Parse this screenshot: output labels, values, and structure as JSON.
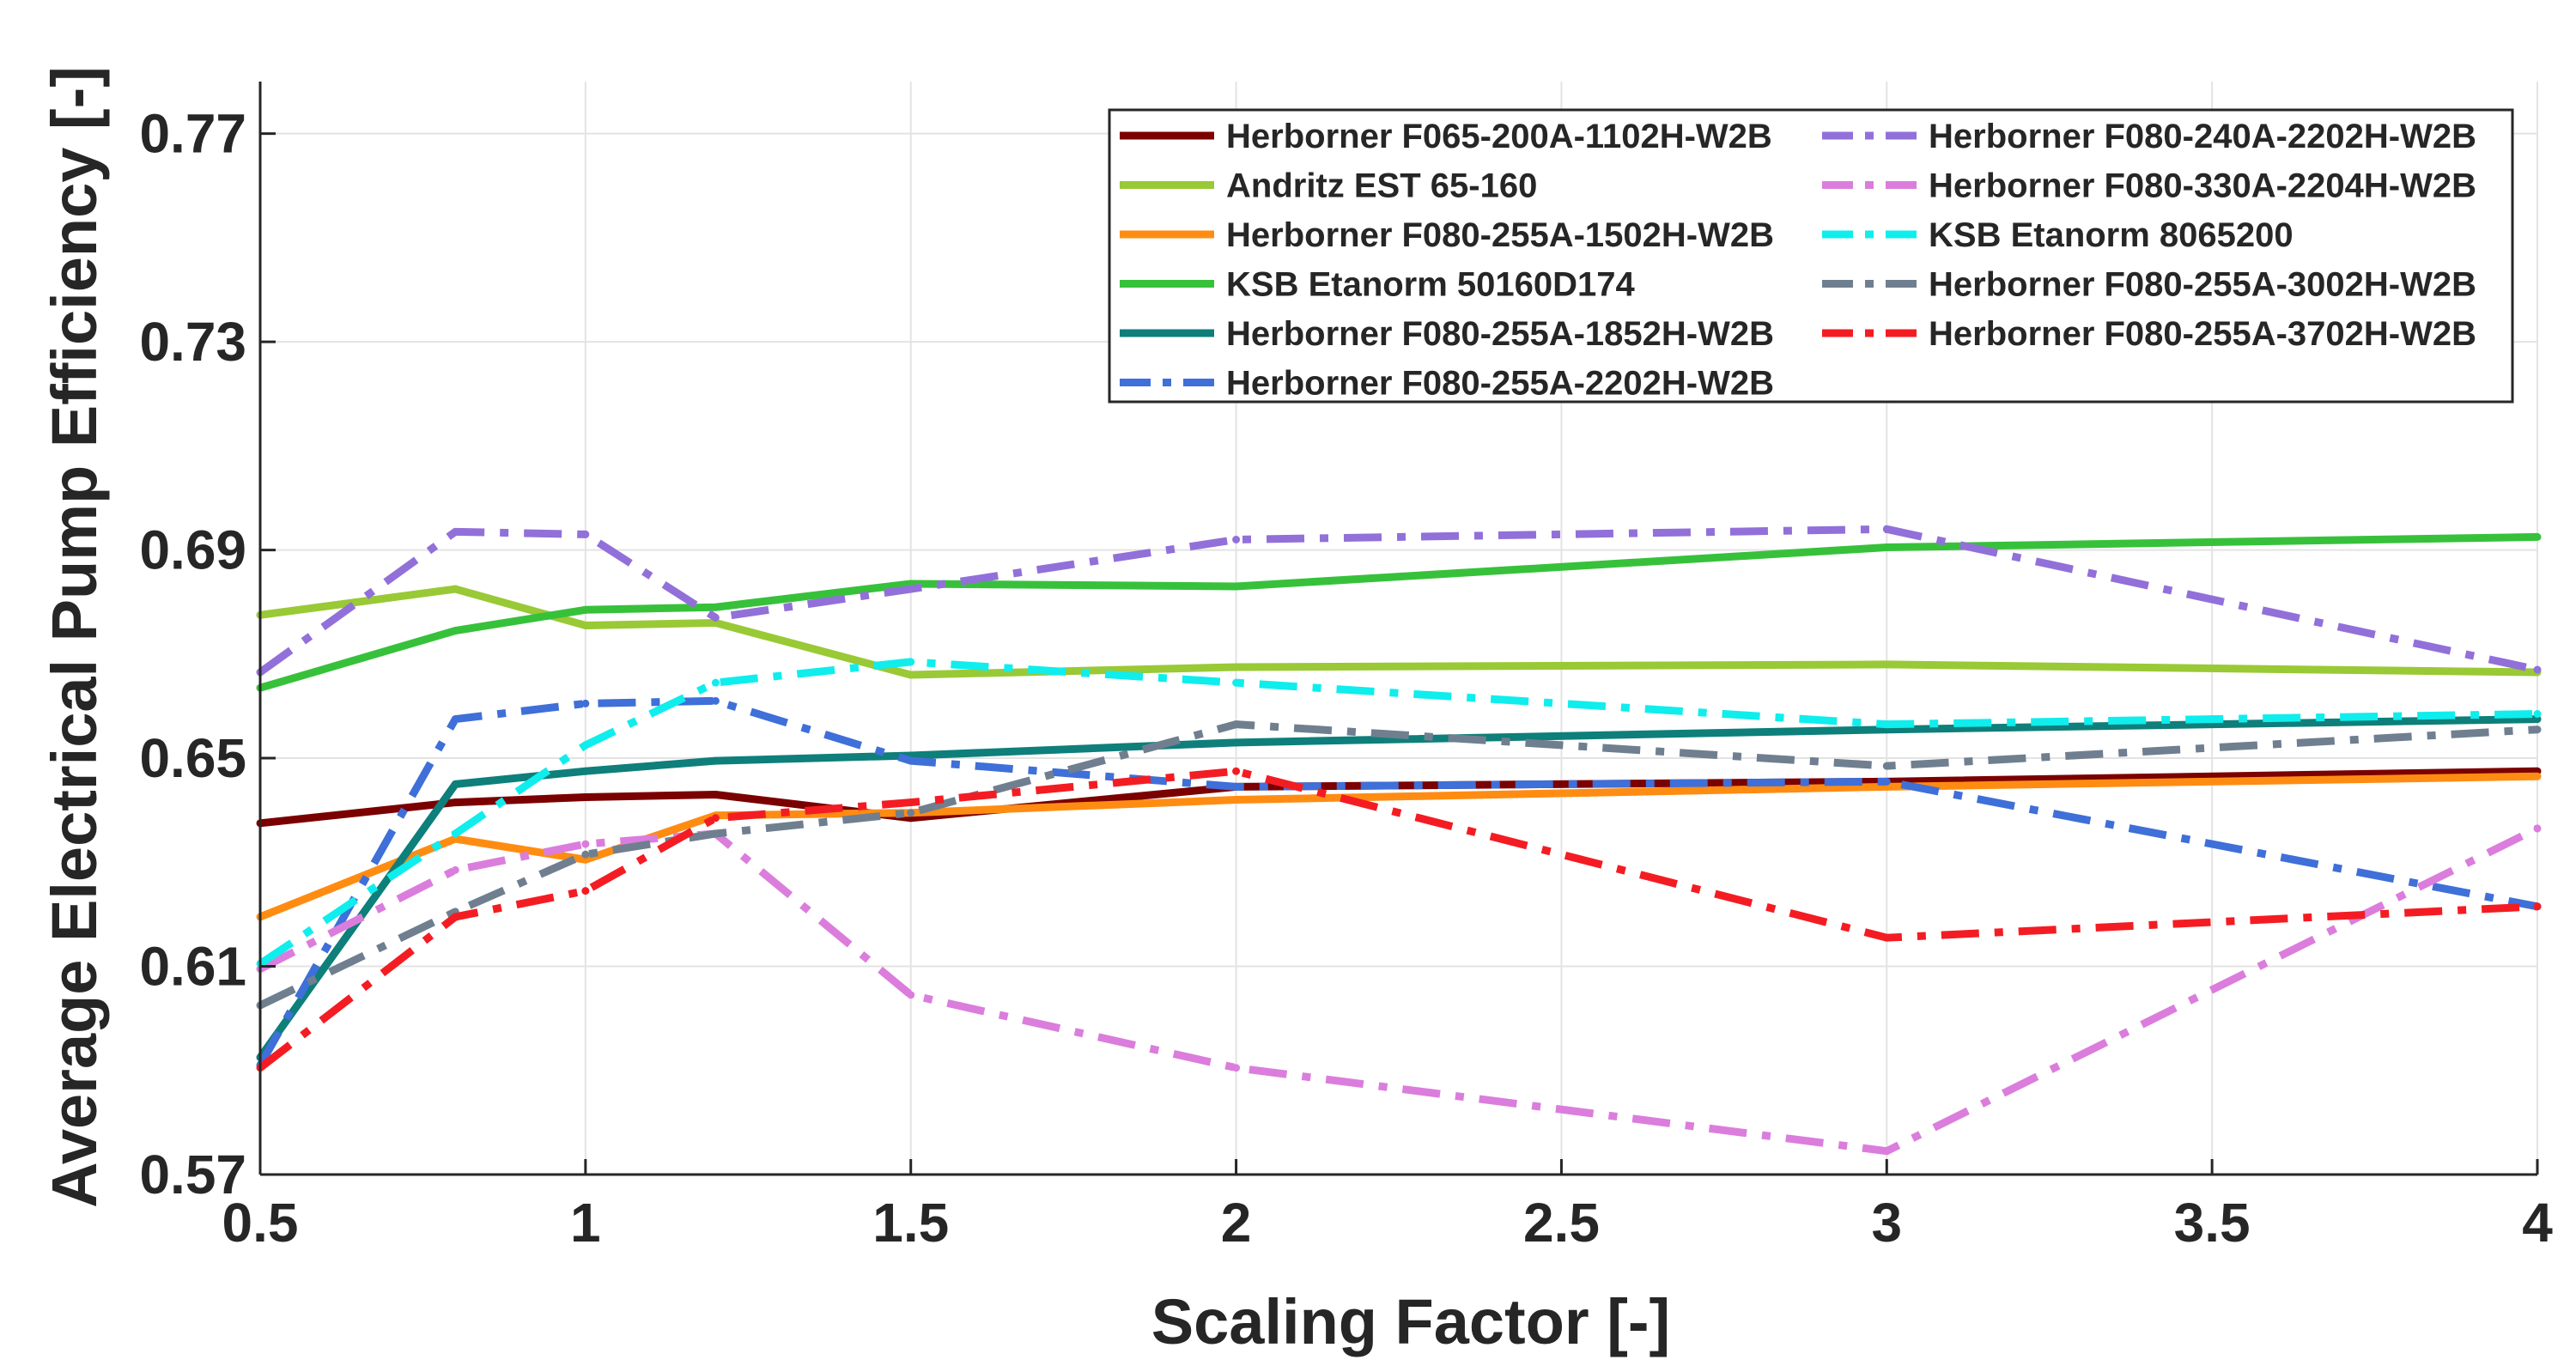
{
  "chart_data": {
    "type": "line",
    "xlabel": "Scaling Factor [-]",
    "ylabel": "Average Electrical Pump Efficiency [-]",
    "x": [
      0.5,
      0.8,
      1,
      1.2,
      1.5,
      2,
      3,
      4
    ],
    "xlim": [
      0.5,
      4
    ],
    "ylim": [
      0.57,
      0.78
    ],
    "xtick_positions": [
      0.5,
      1,
      1.5,
      2,
      2.5,
      3,
      3.5,
      4
    ],
    "xtick_values": [
      0.5,
      1,
      1.5,
      2,
      2.5,
      3,
      3.5,
      4
    ],
    "xticks": [
      "0.5",
      "1",
      "1.5",
      "2",
      "2.5",
      "3",
      "3.5",
      "4"
    ],
    "ytick_values": [
      0.57,
      0.61,
      0.65,
      0.69,
      0.73,
      0.77
    ],
    "yticks": [
      "0.57",
      "0.61",
      "0.65",
      "0.69",
      "0.73",
      "0.77"
    ],
    "grid": true,
    "legend_position": "top-right",
    "legend_columns": 2,
    "series": [
      {
        "name": "Herborner F065-200A-1102H-W2B",
        "color": "#7b0000",
        "dash": "solid",
        "values": [
          0.6375,
          0.6415,
          0.6425,
          0.643,
          0.6385,
          0.6445,
          0.6455,
          0.6475
        ]
      },
      {
        "name": "Andritz EST 65-160",
        "color": "#99c935",
        "dash": "solid",
        "values": [
          0.6775,
          0.6825,
          0.6755,
          0.676,
          0.666,
          0.6675,
          0.668,
          0.6665
        ]
      },
      {
        "name": "Herborner F080-255A-1502H-W2B",
        "color": "#ff8c12",
        "dash": "solid",
        "values": [
          0.6195,
          0.6345,
          0.6305,
          0.639,
          0.6395,
          0.642,
          0.6445,
          0.6465
        ]
      },
      {
        "name": "KSB Etanorm 50160D174",
        "color": "#37c13b",
        "dash": "solid",
        "values": [
          0.6635,
          0.6745,
          0.6785,
          0.679,
          0.6835,
          0.683,
          0.6905,
          0.6925
        ]
      },
      {
        "name": "Herborner F080-255A-1852H-W2B",
        "color": "#0e7f7a",
        "dash": "solid",
        "values": [
          0.5925,
          0.645,
          0.6475,
          0.6495,
          0.6505,
          0.653,
          0.6555,
          0.6575
        ]
      },
      {
        "name": "Herborner F080-255A-2202H-W2B",
        "color": "#3f6fd8",
        "dash": "dashdot",
        "values": [
          0.591,
          0.6575,
          0.6605,
          0.661,
          0.6495,
          0.6445,
          0.6455,
          0.6215
        ]
      },
      {
        "name": "Herborner F080-240A-2202H-W2B",
        "color": "#9270d9",
        "dash": "dashdot",
        "values": [
          0.6665,
          0.6935,
          0.693,
          0.677,
          0.6825,
          0.692,
          0.694,
          0.667
        ]
      },
      {
        "name": "Herborner F080-330A-2204H-W2B",
        "color": "#db7ddc",
        "dash": "dashdot",
        "values": [
          0.6095,
          0.6285,
          0.6335,
          0.6355,
          0.6045,
          0.5905,
          0.5745,
          0.6365
        ]
      },
      {
        "name": "KSB Etanorm 8065200",
        "color": "#10eded",
        "dash": "dashdot",
        "values": [
          0.6105,
          0.6355,
          0.6525,
          0.6645,
          0.6685,
          0.6645,
          0.6565,
          0.6585
        ]
      },
      {
        "name": "Herborner F080-255A-3002H-W2B",
        "color": "#6f7f8f",
        "dash": "dashdot",
        "values": [
          0.6025,
          0.6205,
          0.6315,
          0.6355,
          0.6395,
          0.6565,
          0.6485,
          0.6555
        ]
      },
      {
        "name": "Herborner F080-255A-3702H-W2B",
        "color": "#f41c23",
        "dash": "dashdot",
        "values": [
          0.5905,
          0.6195,
          0.6245,
          0.6385,
          0.6415,
          0.6475,
          0.6155,
          0.6215
        ]
      }
    ]
  }
}
